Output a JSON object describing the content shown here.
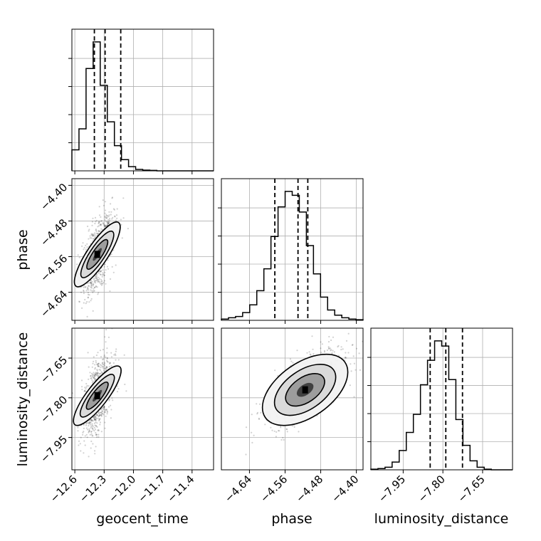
{
  "chart_data": {
    "type": "corner",
    "parameters": [
      "geocent_time",
      "phase",
      "luminosity_distance"
    ],
    "axis_labels": {
      "x": [
        "geocent_time",
        "phase",
        "luminosity_distance"
      ],
      "y": [
        "phase",
        "luminosity_distance"
      ]
    },
    "ranges": {
      "geocent_time": [
        -12.63,
        -11.18
      ],
      "phase": [
        -4.703,
        -4.385
      ],
      "luminosity_distance": [
        -8.072,
        -7.537
      ]
    },
    "ticks": {
      "geocent_time": [
        "−12.6",
        "−12.3",
        "−12.0",
        "−11.7",
        "−11.4"
      ],
      "phase": [
        "−4.64",
        "−4.56",
        "−4.48",
        "−4.40"
      ],
      "luminosity_distance": [
        "−7.95",
        "−7.80",
        "−7.65"
      ]
    },
    "tick_values": {
      "geocent_time": [
        -12.6,
        -12.3,
        -12.0,
        -11.7,
        -11.4
      ],
      "phase": [
        -4.64,
        -4.56,
        -4.48,
        -4.4
      ],
      "luminosity_distance": [
        -7.95,
        -7.8,
        -7.65
      ]
    },
    "quantiles": {
      "geocent_time": [
        -12.4,
        -12.29,
        -12.13
      ],
      "phase": [
        -4.583,
        -4.531,
        -4.509
      ],
      "luminosity_distance": [
        -7.848,
        -7.789,
        -7.726
      ]
    },
    "histograms": {
      "geocent_time": [
        0.15,
        0.3,
        0.73,
        0.92,
        0.61,
        0.35,
        0.18,
        0.08,
        0.03,
        0.01,
        0.005,
        0.003,
        0,
        0,
        0,
        0,
        0,
        0,
        0,
        0
      ],
      "phase": [
        0.01,
        0.02,
        0.03,
        0.06,
        0.12,
        0.23,
        0.4,
        0.65,
        0.88,
        1.0,
        0.97,
        0.84,
        0.58,
        0.36,
        0.18,
        0.08,
        0.04,
        0.02,
        0.01,
        0.005
      ],
      "luminosity_distance": [
        0.005,
        0.01,
        0.02,
        0.06,
        0.15,
        0.29,
        0.43,
        0.66,
        0.85,
        1.0,
        0.96,
        0.7,
        0.39,
        0.19,
        0.07,
        0.02,
        0.005,
        0,
        0,
        0
      ]
    },
    "peaks_2d": {
      "phase_vs_geocent_time": {
        "x": -12.37,
        "y": -4.555
      },
      "luminosity_distance_vs_geocent_time": {
        "x": -12.37,
        "y": -7.792
      },
      "luminosity_distance_vs_phase": {
        "x": -4.515,
        "y": -7.77
      }
    },
    "grid": true
  }
}
